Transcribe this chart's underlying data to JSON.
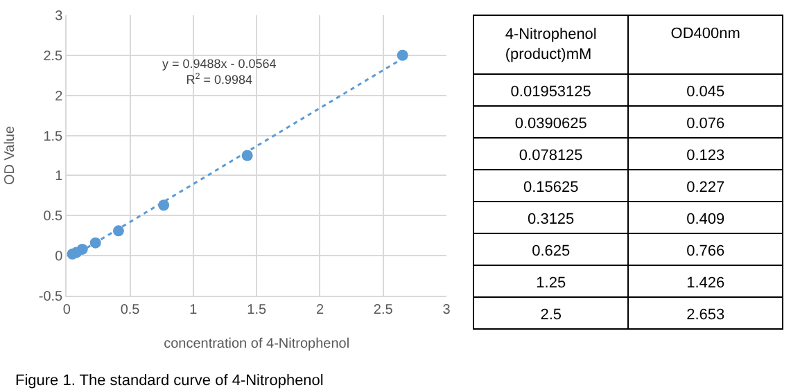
{
  "chart_data": [
    {
      "type": "scatter",
      "title": "Figure 1. The standard curve of 4-Nitrophenol",
      "xlabel": "concentration of 4-Nitrophenol",
      "ylabel": "OD Value",
      "annotations": [
        "y = 0.9488x - 0.0564",
        "R$^{2}$ = 0.9984"
      ],
      "xlim": [
        0,
        3
      ],
      "xticks": [
        0,
        0.5,
        1,
        1.5,
        2,
        2.5,
        3
      ],
      "ylim": [
        -0.5,
        3
      ],
      "yticks": [
        -0.5,
        0,
        0.5,
        1,
        1.5,
        2,
        2.5,
        3
      ],
      "grid": true,
      "marker": "circle",
      "series": [
        {
          "type": "scatter",
          "color": "#5b9bd5",
          "x": [
            0.045,
            0.076,
            0.123,
            0.227,
            0.409,
            0.766,
            1.426,
            2.653
          ],
          "values": [
            0.02,
            0.04,
            0.08,
            0.16,
            0.31,
            0.63,
            1.25,
            2.5
          ]
        },
        {
          "type": "line",
          "color": "#5b9bd5",
          "line_style": "dotted",
          "marker": "none",
          "x": [
            0.045,
            2.653
          ],
          "values": [
            -0.01,
            2.46
          ]
        }
      ]
    },
    {
      "type": "other",
      "annotations": [
        "4-Nitrophenol (product)mM",
        "OD400nm",
        "0.01953125",
        "0.045",
        "0.0390625",
        "0.076",
        "0.078125",
        "0.123",
        "0.15625",
        "0.227",
        "0.3125",
        "0.409",
        "0.625",
        "0.766",
        "1.25",
        "1.426",
        "2.5",
        "2.653"
      ]
    }
  ]
}
